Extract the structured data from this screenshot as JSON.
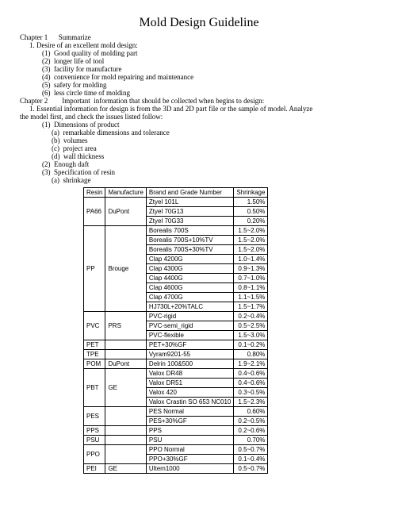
{
  "title": "Mold Design Guideline",
  "chapter1_line": "Chapter 1      Summarize",
  "sec1_1_line": "1. Desire of an excellent mold design:",
  "s1_items": [
    "(1)  Good quality of molding part",
    "(2)  longer life of tool",
    "(3)  facility for manufacture",
    "(4)  convenience for mold repairing and maintenance",
    "(5)  safety for molding",
    "(6)  less circle time of molding"
  ],
  "chapter2_line": "Chapter 2        Important  information that should be collected when begins to design:",
  "sec2_1_line": "1. Essential information for design is from the 3D and 2D part file or the sample of model. Analyze",
  "sec2_1_line2": "the model first, and check the issues listed follow:",
  "s2_items": [
    "(1)  Dimensions of product",
    "(2)  Enough daft",
    "(3)  Specification of resin"
  ],
  "s2_sub_a": [
    "(a)  remarkable dimensions and tolerance",
    "(b)  volumes",
    "(c)  project area",
    "(d)  wall thickness"
  ],
  "s2_spec_sub": "(a)  shrinkage",
  "table": {
    "headers": [
      "Resin",
      "Manufacture",
      "Brand and Grade Number",
      "Shrinkage"
    ],
    "rows": [
      {
        "r": "",
        "m": "",
        "b": "Ztyel 101L",
        "s": "1.50%"
      },
      {
        "r": "PA66",
        "m": "DuPont",
        "b": "Ztyel 70G13",
        "s": "0.50%"
      },
      {
        "r": "",
        "m": "",
        "b": "Ztyel 70G33",
        "s": "0.20%"
      },
      {
        "r": "",
        "m": "",
        "b": "Borealis 700S",
        "s": "1.5~2.0%"
      },
      {
        "r": "",
        "m": "",
        "b": "Borealis 700S+10%TV",
        "s": "1.5~2.0%"
      },
      {
        "r": "",
        "m": "",
        "b": "Borealis 700S+30%TV",
        "s": "1.5~2.0%"
      },
      {
        "r": "",
        "m": "",
        "b": "Clap 4200G",
        "s": "1.0~1.4%"
      },
      {
        "r": "PP",
        "m": "Brouge",
        "b": "Clap 4300G",
        "s": "0.9~1.3%"
      },
      {
        "r": "",
        "m": "",
        "b": "Clap 4400G",
        "s": "0.7~1.0%"
      },
      {
        "r": "",
        "m": "",
        "b": "Clap 4600G",
        "s": "0.8~1.1%"
      },
      {
        "r": "",
        "m": "",
        "b": "Clap 4700G",
        "s": "1.1~1.5%"
      },
      {
        "r": "",
        "m": "",
        "b": "HJ730L+20%TALC",
        "s": "1.5~1.7%"
      },
      {
        "r": "",
        "m": "",
        "b": "PVC-rigid",
        "s": "0.2~0.4%"
      },
      {
        "r": "PVC",
        "m": "PRS",
        "b": "PVC-semi_rigid",
        "s": "0.5~2.5%"
      },
      {
        "r": "",
        "m": "",
        "b": "PVC-flexible",
        "s": "1.5~3.0%"
      },
      {
        "r": "PET",
        "m": "",
        "b": "PET+30%GF",
        "s": "0.1~0.2%"
      },
      {
        "r": "TPE",
        "m": "",
        "b": "Vyram9201-55",
        "s": "0.80%"
      },
      {
        "r": "POM",
        "m": "DuPont",
        "b": "Delrin 100&500",
        "s": "1.9~2.1%"
      },
      {
        "r": "",
        "m": "",
        "b": "Valox DR48",
        "s": "0.4~0.6%"
      },
      {
        "r": "PBT",
        "m": "GE",
        "b": "Valox DR51",
        "s": "0.4~0.6%"
      },
      {
        "r": "",
        "m": "",
        "b": "Valox 420",
        "s": "0.3~0.5%"
      },
      {
        "r": "",
        "m": "",
        "b": "Valox Crastin SO 653 NC010",
        "s": "1.5~2.3%"
      },
      {
        "r": "",
        "m": "",
        "b": "PES Normal",
        "s": "0.60%"
      },
      {
        "r": "PES",
        "m": "",
        "b": "PES+30%GF",
        "s": "0.2~0.5%"
      },
      {
        "r": "PPS",
        "m": "",
        "b": "PPS",
        "s": "0.2~0.6%"
      },
      {
        "r": "PSU",
        "m": "",
        "b": "PSU",
        "s": "0.70%"
      },
      {
        "r": "",
        "m": "",
        "b": "PPO Normal",
        "s": "0.5~0.7%"
      },
      {
        "r": "PPO",
        "m": "",
        "b": "PPO+30%GF",
        "s": "0.1~0.4%"
      },
      {
        "r": "PEI",
        "m": "GE",
        "b": "Ultem1000",
        "s": "0.5~0.7%"
      }
    ],
    "groups": [
      {
        "start": 0,
        "span": 3,
        "r": "PA66",
        "m": "DuPont"
      },
      {
        "start": 3,
        "span": 9,
        "r": "PP",
        "m": "Brouge"
      },
      {
        "start": 12,
        "span": 3,
        "r": "PVC",
        "m": "PRS"
      },
      {
        "start": 15,
        "span": 1,
        "r": "PET",
        "m": ""
      },
      {
        "start": 16,
        "span": 1,
        "r": "TPE",
        "m": ""
      },
      {
        "start": 17,
        "span": 1,
        "r": "POM",
        "m": "DuPont"
      },
      {
        "start": 18,
        "span": 4,
        "r": "PBT",
        "m": "GE"
      },
      {
        "start": 22,
        "span": 2,
        "r": "PES",
        "m": ""
      },
      {
        "start": 24,
        "span": 1,
        "r": "PPS",
        "m": ""
      },
      {
        "start": 25,
        "span": 1,
        "r": "PSU",
        "m": ""
      },
      {
        "start": 26,
        "span": 2,
        "r": "PPO",
        "m": ""
      },
      {
        "start": 28,
        "span": 1,
        "r": "PEI",
        "m": "GE"
      }
    ]
  }
}
